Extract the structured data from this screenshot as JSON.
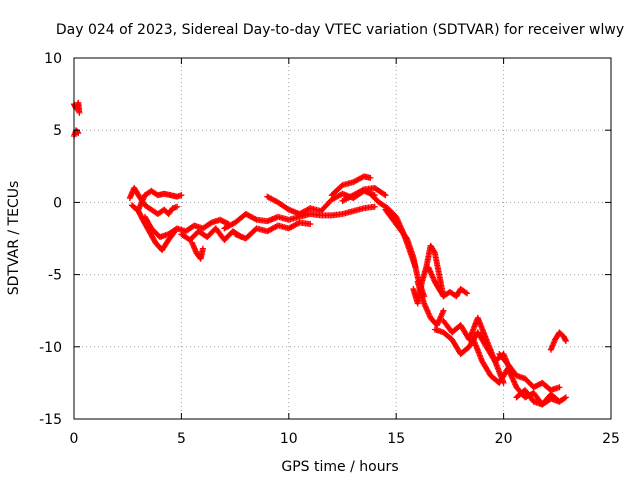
{
  "chart_data": {
    "type": "scatter",
    "title": "Day 024 of 2023, Sidereal Day-to-day VTEC variation (SDTVAR) for receiver wlwy",
    "xlabel": "GPS time / hours",
    "ylabel": "SDTVAR / TECUs",
    "xlim": [
      0,
      25
    ],
    "ylim": [
      -15,
      10
    ],
    "x_ticks": [
      0,
      5,
      10,
      15,
      20,
      25
    ],
    "y_ticks": [
      10,
      5,
      0,
      -5,
      -10,
      -15
    ],
    "x_tick_labels": [
      "0",
      "5",
      "10",
      "15",
      "20",
      "25"
    ],
    "y_tick_labels": [
      "10",
      "5",
      "0",
      "-5",
      "-10",
      "-15"
    ],
    "grid": true,
    "marker": "+",
    "series": [
      {
        "name": "SDTVAR",
        "color": "#ff0000",
        "tracks": [
          {
            "x": [
              0.0,
              0.1,
              0.2,
              0.25
            ],
            "y": [
              6.8,
              6.5,
              6.9,
              6.2
            ]
          },
          {
            "x": [
              0.0,
              0.1,
              0.2
            ],
            "y": [
              4.6,
              5.0,
              4.8
            ]
          },
          {
            "x": [
              2.6,
              2.8,
              3.0,
              3.3,
              3.6,
              3.9,
              4.2,
              4.4,
              4.6,
              4.8
            ],
            "y": [
              0.3,
              1.0,
              0.5,
              -0.2,
              -0.5,
              -0.8,
              -0.5,
              -0.8,
              -0.4,
              -0.3
            ]
          },
          {
            "x": [
              2.7,
              3.0,
              3.2,
              3.5,
              3.8,
              4.1,
              4.4,
              4.7
            ],
            "y": [
              -0.2,
              -0.6,
              -1.2,
              -2.0,
              -2.8,
              -3.3,
              -2.6,
              -2.0
            ]
          },
          {
            "x": [
              3.0,
              3.3,
              3.6,
              3.9,
              4.2,
              4.5,
              4.8,
              5.0
            ],
            "y": [
              -0.5,
              0.5,
              0.8,
              0.5,
              0.6,
              0.5,
              0.4,
              0.5
            ]
          },
          {
            "x": [
              3.3,
              3.6,
              4.0,
              4.4,
              4.8,
              5.2,
              5.6,
              6.0,
              6.4,
              6.8,
              7.2
            ],
            "y": [
              -1.0,
              -1.8,
              -2.4,
              -2.2,
              -1.8,
              -2.0,
              -1.6,
              -1.8,
              -1.4,
              -1.2,
              -1.5
            ]
          },
          {
            "x": [
              5.0,
              5.4,
              5.8,
              6.2,
              6.6,
              7.0,
              7.4,
              7.8
            ],
            "y": [
              -2.2,
              -2.6,
              -2.0,
              -2.4,
              -1.8,
              -2.6,
              -2.0,
              -2.4
            ]
          },
          {
            "x": [
              5.5,
              5.7,
              5.9,
              6.0
            ],
            "y": [
              -2.8,
              -3.5,
              -3.9,
              -3.2
            ]
          },
          {
            "x": [
              7.0,
              7.5,
              8.0,
              8.5,
              9.0,
              9.5,
              10.0,
              10.5,
              11.0,
              11.5,
              12.0,
              12.5,
              13.0,
              13.5,
              14.0
            ],
            "y": [
              -1.8,
              -1.4,
              -0.8,
              -1.2,
              -1.3,
              -1.0,
              -1.2,
              -1.0,
              -0.8,
              -0.9,
              -0.9,
              -0.8,
              -0.6,
              -0.4,
              -0.3
            ]
          },
          {
            "x": [
              7.5,
              8.0,
              8.5,
              9.0,
              9.5,
              10.0,
              10.5,
              11.0
            ],
            "y": [
              -2.2,
              -2.5,
              -1.8,
              -2.0,
              -1.6,
              -1.8,
              -1.4,
              -1.5
            ]
          },
          {
            "x": [
              9.0,
              9.5,
              10.0,
              10.5,
              11.0,
              11.5,
              12.0,
              12.5,
              13.0,
              13.5,
              14.0
            ],
            "y": [
              0.4,
              0.0,
              -0.5,
              -0.8,
              -0.4,
              -0.6,
              0.2,
              0.6,
              0.3,
              0.8,
              0.5
            ]
          },
          {
            "x": [
              12.0,
              12.5,
              13.0,
              13.5,
              13.8
            ],
            "y": [
              0.5,
              1.2,
              1.4,
              1.8,
              1.7
            ]
          },
          {
            "x": [
              12.5,
              13.0,
              13.5,
              14.0,
              14.5
            ],
            "y": [
              0.1,
              0.5,
              0.9,
              1.0,
              0.5
            ]
          },
          {
            "x": [
              13.8,
              14.2,
              14.6,
              15.0,
              15.3,
              15.6,
              15.9
            ],
            "y": [
              0.6,
              0.0,
              -0.4,
              -1.0,
              -2.0,
              -3.2,
              -4.5
            ]
          },
          {
            "x": [
              14.5,
              15.0,
              15.5,
              15.8,
              16.0,
              16.3
            ],
            "y": [
              -0.5,
              -1.5,
              -2.5,
              -3.8,
              -5.2,
              -6.5
            ]
          },
          {
            "x": [
              15.8,
              16.0,
              16.2,
              16.4,
              16.6,
              16.8,
              17.0,
              17.2
            ],
            "y": [
              -6.0,
              -7.0,
              -5.5,
              -4.5,
              -3.0,
              -3.5,
              -5.0,
              -6.5
            ]
          },
          {
            "x": [
              16.0,
              16.3,
              16.6,
              16.9,
              17.2
            ],
            "y": [
              -5.5,
              -7.0,
              -8.0,
              -8.5,
              -7.5
            ]
          },
          {
            "x": [
              16.5,
              16.8,
              17.0,
              17.2,
              17.5,
              17.8,
              18.0,
              18.3
            ],
            "y": [
              -4.5,
              -5.5,
              -6.0,
              -6.5,
              -6.2,
              -6.5,
              -6.0,
              -6.3
            ]
          },
          {
            "x": [
              16.8,
              17.2,
              17.6,
              18.0,
              18.4,
              18.8,
              19.2,
              19.6,
              20.0,
              20.4
            ],
            "y": [
              -8.8,
              -9.0,
              -9.5,
              -10.5,
              -10.0,
              -9.0,
              -10.0,
              -11.0,
              -10.5,
              -12.0
            ]
          },
          {
            "x": [
              17.2,
              17.6,
              18.0,
              18.4,
              18.8,
              19.2,
              19.6,
              20.0
            ],
            "y": [
              -8.2,
              -9.0,
              -8.5,
              -9.5,
              -8.0,
              -9.5,
              -11.0,
              -12.5
            ]
          },
          {
            "x": [
              18.6,
              19.0,
              19.4,
              19.8,
              20.2,
              20.6,
              21.0,
              21.4,
              21.8,
              22.2,
              22.6,
              22.9
            ],
            "y": [
              -9.5,
              -11.0,
              -12.0,
              -12.5,
              -11.5,
              -12.8,
              -13.5,
              -13.2,
              -14.0,
              -13.3,
              -13.8,
              -13.5
            ]
          },
          {
            "x": [
              19.8,
              20.2,
              20.6,
              21.0,
              21.4,
              21.8,
              22.2,
              22.6
            ],
            "y": [
              -10.5,
              -11.2,
              -12.0,
              -12.2,
              -12.8,
              -12.5,
              -13.0,
              -12.8
            ]
          },
          {
            "x": [
              20.6,
              21.0,
              21.4,
              21.8,
              22.2,
              22.6
            ],
            "y": [
              -13.5,
              -13.0,
              -13.8,
              -14.0,
              -13.6,
              -13.8
            ]
          },
          {
            "x": [
              22.2,
              22.4,
              22.6,
              22.8,
              22.9
            ],
            "y": [
              -10.2,
              -9.5,
              -9.0,
              -9.3,
              -9.6
            ]
          }
        ]
      }
    ]
  }
}
